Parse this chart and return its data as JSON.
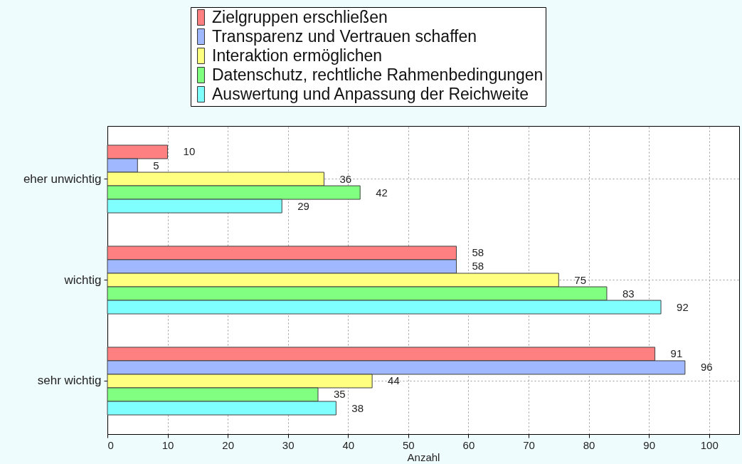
{
  "chart_data": {
    "type": "bar",
    "orientation": "horizontal",
    "categories": [
      "eher unwichtig",
      "wichtig",
      "sehr wichtig"
    ],
    "series": [
      {
        "name": "Zielgruppen erschließen",
        "color": "#ff8080",
        "values": [
          10,
          58,
          91
        ]
      },
      {
        "name": "Transparenz und Vertrauen schaffen",
        "color": "#a0b8ff",
        "values": [
          5,
          58,
          96
        ]
      },
      {
        "name": "Interaktion ermöglichen",
        "color": "#ffff80",
        "values": [
          36,
          75,
          44
        ]
      },
      {
        "name": "Datenschutz, rechtliche Rahmenbedingungen",
        "color": "#80ff80",
        "values": [
          42,
          83,
          35
        ]
      },
      {
        "name": "Auswertung und Anpassung der Reichweite",
        "color": "#80ffff",
        "values": [
          29,
          92,
          38
        ]
      }
    ],
    "xlabel": "Anzahl",
    "xlim": [
      0,
      105
    ],
    "xticks": [
      0,
      10,
      20,
      30,
      40,
      50,
      60,
      70,
      80,
      90,
      100
    ],
    "grid": true,
    "legend": "top",
    "data_labels": true
  }
}
